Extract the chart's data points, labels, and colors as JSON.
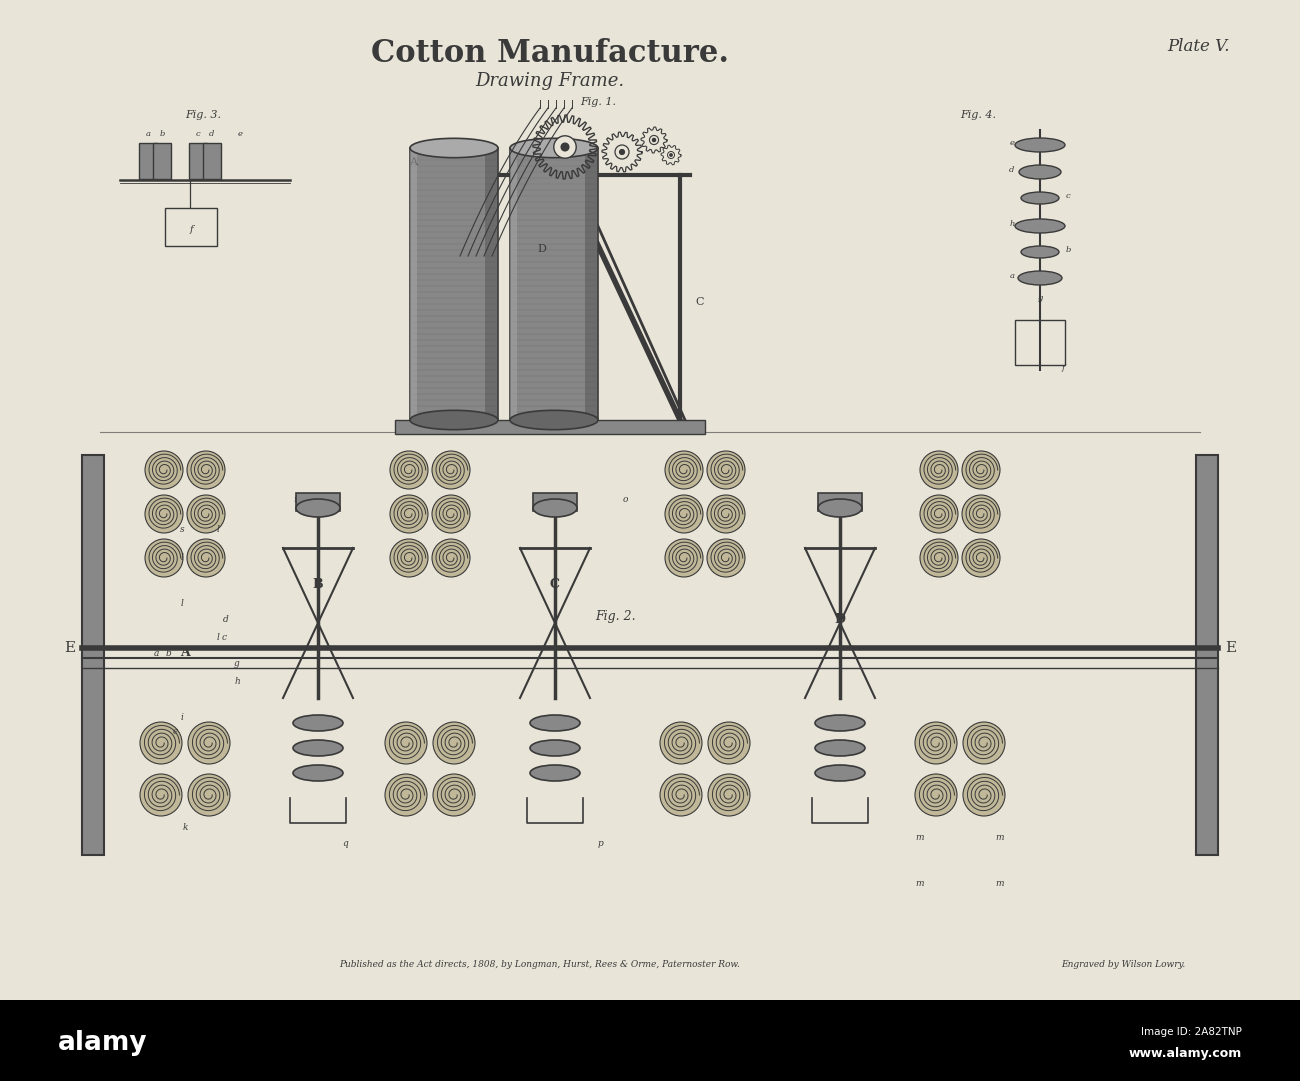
{
  "title": "Cotton Manufacture.",
  "subtitle": "Drawing Frame.",
  "plate": "Plate V.",
  "publisher_text": "Published as the Act directs, 1808, by Longman, Hurst, Rees & Orme, Paternoster Row.",
  "engraver_text": "Engraved by Wilson Lowry.",
  "bg_color": "#e8e4d8",
  "main_color": "#3a3a3a",
  "dark_gray": "#555555",
  "mid_gray": "#888888",
  "light_gray": "#aaaaaa",
  "alamy_bar_color": "#000000"
}
